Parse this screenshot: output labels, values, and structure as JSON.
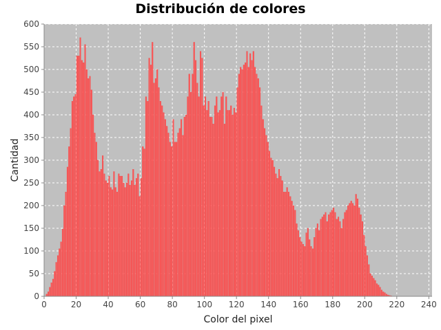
{
  "chart_data": {
    "type": "bar",
    "title": "Distribución de colores",
    "xlabel": "Color del pixel",
    "ylabel": "Cantidad",
    "xlim": [
      0,
      242
    ],
    "ylim": [
      0,
      600
    ],
    "xticks": [
      0,
      20,
      40,
      60,
      80,
      100,
      120,
      140,
      160,
      180,
      200,
      220,
      240
    ],
    "yticks": [
      0,
      50,
      100,
      150,
      200,
      250,
      300,
      350,
      400,
      450,
      500,
      550,
      600
    ],
    "grid": true,
    "legend": "none",
    "colors": {
      "bar": "#ff5555",
      "bar_edge": "#e84444",
      "plot_bg": "#c0c0c0",
      "grid": "#ffffff"
    },
    "series": [
      {
        "values": [
          0,
          5,
          10,
          20,
          30,
          38,
          55,
          75,
          90,
          105,
          120,
          148,
          200,
          230,
          285,
          330,
          370,
          430,
          440,
          445,
          530,
          530,
          570,
          520,
          515,
          555,
          500,
          480,
          485,
          455,
          400,
          360,
          340,
          300,
          275,
          280,
          310,
          270,
          255,
          250,
          265,
          240,
          235,
          275,
          240,
          230,
          270,
          265,
          265,
          250,
          240,
          250,
          270,
          245,
          255,
          280,
          245,
          260,
          270,
          220,
          260,
          330,
          325,
          440,
          430,
          525,
          510,
          560,
          470,
          480,
          500,
          460,
          430,
          420,
          405,
          390,
          375,
          360,
          340,
          330,
          390,
          340,
          340,
          360,
          370,
          390,
          355,
          395,
          400,
          440,
          490,
          450,
          490,
          560,
          520,
          470,
          440,
          540,
          525,
          420,
          440,
          410,
          430,
          395,
          395,
          380,
          420,
          440,
          405,
          410,
          440,
          450,
          380,
          440,
          410,
          410,
          420,
          400,
          415,
          405,
          460,
          490,
          505,
          500,
          510,
          515,
          540,
          505,
          535,
          520,
          540,
          505,
          490,
          480,
          460,
          420,
          390,
          370,
          355,
          340,
          320,
          305,
          300,
          285,
          270,
          260,
          280,
          265,
          255,
          230,
          230,
          240,
          230,
          220,
          210,
          200,
          190,
          160,
          145,
          130,
          120,
          115,
          110,
          140,
          150,
          125,
          110,
          105,
          130,
          150,
          160,
          145,
          170,
          175,
          180,
          185,
          165,
          180,
          185,
          190,
          195,
          185,
          170,
          175,
          165,
          150,
          170,
          185,
          190,
          200,
          205,
          210,
          205,
          200,
          225,
          215,
          195,
          180,
          165,
          135,
          110,
          90,
          70,
          50,
          45,
          40,
          35,
          28,
          25,
          20,
          14,
          10,
          8,
          5,
          3,
          2,
          1,
          0,
          0,
          0
        ]
      }
    ]
  }
}
